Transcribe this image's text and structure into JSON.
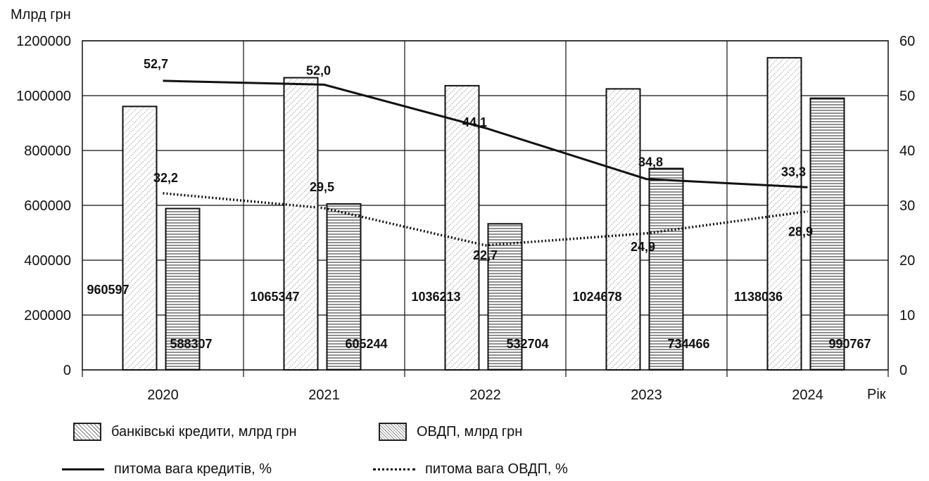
{
  "chart_data": {
    "type": "bar",
    "y_left_title": "Млрд грн",
    "x_axis_title": "Рік",
    "categories": [
      "2020",
      "2021",
      "2022",
      "2023",
      "2024"
    ],
    "ylim_left": [
      0,
      1200000
    ],
    "ylim_right": [
      0,
      60
    ],
    "yticks_left": [
      "0",
      "200000",
      "400000",
      "600000",
      "800000",
      "1000000",
      "1200000"
    ],
    "yticks_right": [
      "0",
      "10",
      "20",
      "30",
      "40",
      "50",
      "60"
    ],
    "grid": true,
    "legend_position": "bottom-left",
    "series": [
      {
        "name": "банківські кредити, млрд грн",
        "kind": "bar",
        "axis": "left",
        "pattern": "diagonal",
        "values": [
          960597,
          1065347,
          1036213,
          1024678,
          1138036
        ],
        "labels": [
          "960597",
          "1065347",
          "1036213",
          "1024678",
          "1138036"
        ]
      },
      {
        "name": "ОВДП, млрд грн",
        "kind": "bar",
        "axis": "left",
        "pattern": "horizontal",
        "values": [
          588307,
          605244,
          532704,
          734466,
          990767
        ],
        "labels": [
          "588307",
          "605244",
          "532704",
          "734466",
          "990767"
        ]
      },
      {
        "name": "питома вага кредитів, %",
        "kind": "line",
        "axis": "right",
        "style": "solid",
        "values": [
          52.7,
          52.0,
          44.1,
          34.8,
          33.3
        ],
        "labels": [
          "52,7",
          "52,0",
          "44,1",
          "34,8",
          "33,3"
        ]
      },
      {
        "name": "питома вага ОВДП, %",
        "kind": "line",
        "axis": "right",
        "style": "dotted",
        "values": [
          32.2,
          29.5,
          22.7,
          24.9,
          28.9
        ],
        "labels": [
          "32,2",
          "29,5",
          "22,7",
          "24,9",
          "28,9"
        ]
      }
    ]
  }
}
